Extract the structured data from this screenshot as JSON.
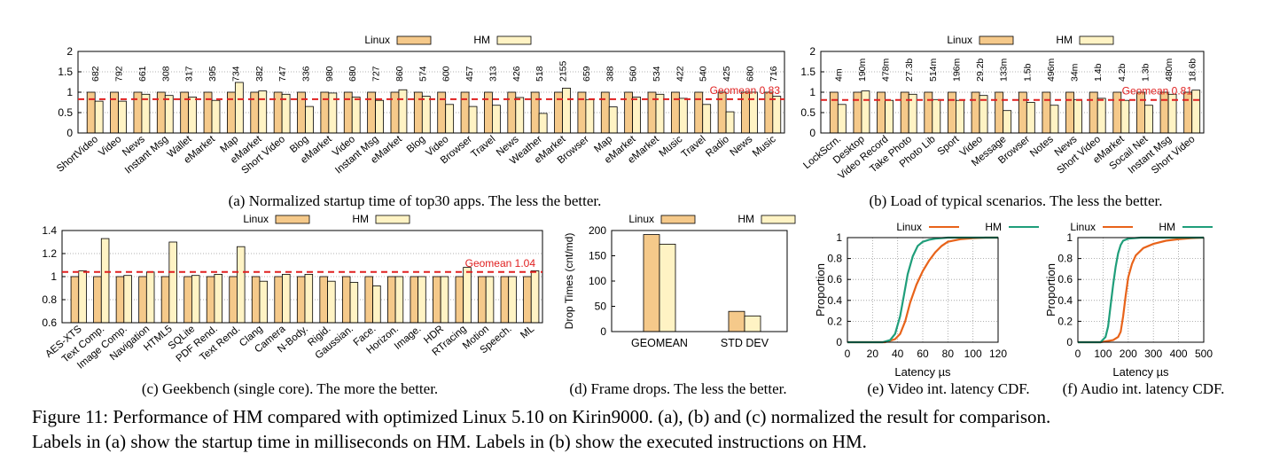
{
  "chart_data": [
    {
      "id": "a",
      "type": "bar",
      "caption": "(a) Normalized startup time of top30 apps. The less the better.",
      "legend": [
        "Linux",
        "HM"
      ],
      "legend_position": "top",
      "ylim": [
        0,
        2
      ],
      "yticks": [
        "0",
        "0.5",
        "1",
        "1.5",
        "2"
      ],
      "grid": true,
      "categories": [
        "ShortVideo",
        "Video",
        "News",
        "Instant Msg",
        "Wallet",
        "eMarket",
        "Map",
        "eMarket",
        "Short Video",
        "Blog",
        "eMarket",
        "Video",
        "Instant Msg",
        "eMarket",
        "Blog",
        "Video",
        "Browser",
        "Travel",
        "News",
        "Weather",
        "eMarket",
        "Browser",
        "Map",
        "eMarket",
        "eMarket",
        "Music",
        "Travel",
        "Radio",
        "News",
        "Music"
      ],
      "top_labels": [
        "682",
        "792",
        "661",
        "308",
        "317",
        "395",
        "734",
        "382",
        "747",
        "336",
        "980",
        "680",
        "727",
        "860",
        "574",
        "600",
        "457",
        "313",
        "426",
        "518",
        "2155",
        "659",
        "388",
        "560",
        "534",
        "422",
        "540",
        "425",
        "680",
        "716"
      ],
      "series": [
        {
          "name": "Linux",
          "values": [
            1,
            1,
            1,
            1,
            1,
            1,
            1,
            1,
            1,
            1,
            1,
            1,
            1,
            1,
            1,
            1,
            1,
            1,
            1,
            1,
            1,
            1,
            1,
            1,
            1,
            1,
            1,
            1,
            1,
            1
          ]
        },
        {
          "name": "HM",
          "values": [
            0.78,
            0.78,
            0.95,
            0.92,
            0.88,
            0.8,
            1.24,
            1.03,
            0.95,
            0.65,
            0.98,
            0.88,
            0.8,
            1.06,
            0.9,
            0.7,
            0.65,
            0.68,
            0.87,
            0.48,
            1.1,
            0.82,
            0.64,
            0.88,
            0.95,
            0.85,
            0.7,
            0.52,
            1.0,
            0.9
          ]
        }
      ],
      "reference_line": {
        "label": "Geomean 0.83",
        "value": 0.83,
        "color": "#e02020"
      }
    },
    {
      "id": "b",
      "type": "bar",
      "caption": "(b) Load of typical scenarios. The less the better.",
      "legend": [
        "Linux",
        "HM"
      ],
      "legend_position": "top",
      "ylim": [
        0,
        2
      ],
      "yticks": [
        "0",
        "0.5",
        "1",
        "1.5",
        "2"
      ],
      "grid": true,
      "categories": [
        "LockScrn.",
        "Desktop",
        "Video Record",
        "Take Photo",
        "Photo Lib",
        "Sport",
        "Video",
        "Message",
        "Browser",
        "Notes",
        "News",
        "Short Video",
        "eMarket",
        "Socail Net",
        "Instant Msg",
        "Short Video"
      ],
      "top_labels": [
        "4m",
        "190m",
        "478m",
        "27.3b",
        "514m",
        "196m",
        "29.2b",
        "133m",
        "1.5b",
        "496m",
        "34m",
        "1.4b",
        "4.2b",
        "1.3b",
        "480m",
        "18.6b"
      ],
      "series": [
        {
          "name": "Linux",
          "values": [
            1,
            1,
            1,
            1,
            1,
            1,
            1,
            1,
            1,
            1,
            1,
            1,
            1,
            1,
            1,
            1
          ]
        },
        {
          "name": "HM",
          "values": [
            0.7,
            1.03,
            0.8,
            0.95,
            0.82,
            0.8,
            0.92,
            0.55,
            0.75,
            0.68,
            0.82,
            0.85,
            0.8,
            0.68,
            0.95,
            1.05
          ]
        }
      ],
      "reference_line": {
        "label": "Geomean 0.81",
        "value": 0.81,
        "color": "#e02020"
      }
    },
    {
      "id": "c",
      "type": "bar",
      "caption": "(c) Geekbench (single core). The more the better.",
      "legend": [
        "Linux",
        "HM"
      ],
      "legend_position": "top",
      "ylim": [
        0.6,
        1.4
      ],
      "yticks": [
        "0.6",
        "0.8",
        "1",
        "1.2",
        "1.4"
      ],
      "grid": true,
      "categories": [
        "AES-XTS",
        "Text Comp.",
        "Image Comp.",
        "Navigation",
        "HTML5",
        "SQLite",
        "PDF Rend.",
        "Text Rend.",
        "Clang",
        "Camera",
        "N-Body.",
        "Rigid.",
        "Gaussian.",
        "Face.",
        "Horizon.",
        "Image.",
        "HDR",
        "RTracing",
        "Motion",
        "Speech.",
        "ML"
      ],
      "series": [
        {
          "name": "Linux",
          "values": [
            1,
            1,
            1,
            1,
            1,
            1,
            1,
            1,
            1,
            1,
            1,
            1,
            1,
            1,
            1,
            1,
            1,
            1,
            1,
            1,
            1
          ]
        },
        {
          "name": "HM",
          "values": [
            1.05,
            1.33,
            1.01,
            1.04,
            1.3,
            1.01,
            1.02,
            1.26,
            0.96,
            1.02,
            1.02,
            0.96,
            0.95,
            0.92,
            1.0,
            1.0,
            1.0,
            1.08,
            1.0,
            1.0,
            1.05
          ]
        }
      ],
      "reference_line": {
        "label": "Geomean 1.04",
        "value": 1.04,
        "color": "#e02020"
      }
    },
    {
      "id": "d",
      "type": "bar",
      "caption": "(d) Frame drops. The less the better.",
      "legend": [
        "Linux",
        "HM"
      ],
      "legend_position": "top",
      "ylabel": "Drop Times (cnt/md)",
      "ylim": [
        0,
        200
      ],
      "yticks": [
        "0",
        "50",
        "100",
        "150",
        "200"
      ],
      "categories": [
        "GEOMEAN",
        "STD DEV"
      ],
      "series": [
        {
          "name": "Linux",
          "values": [
            192,
            40
          ]
        },
        {
          "name": "HM",
          "values": [
            173,
            31
          ]
        }
      ]
    },
    {
      "id": "e",
      "type": "line",
      "caption": "(e) Video int. latency CDF.",
      "legend": [
        "Linux",
        "HM"
      ],
      "legend_position": "top",
      "xlabel": "Latency µs",
      "ylabel": "Proportion",
      "xlim": [
        0,
        120
      ],
      "ylim": [
        0,
        1
      ],
      "xticks": [
        "0",
        "20",
        "40",
        "60",
        "80",
        "100",
        "120"
      ],
      "yticks": [
        "0",
        "0.2",
        "0.4",
        "0.6",
        "0.8",
        "1"
      ],
      "grid": true,
      "series": [
        {
          "name": "Linux",
          "color": "#e8631a",
          "x": [
            0,
            30,
            38,
            42,
            46,
            50,
            55,
            60,
            65,
            70,
            75,
            80,
            90,
            100,
            110,
            120
          ],
          "y": [
            0,
            0,
            0.03,
            0.08,
            0.2,
            0.38,
            0.55,
            0.68,
            0.78,
            0.86,
            0.92,
            0.96,
            0.985,
            0.995,
            1,
            1
          ]
        },
        {
          "name": "HM",
          "color": "#1f9e7a",
          "x": [
            0,
            28,
            34,
            38,
            42,
            45,
            48,
            52,
            56,
            60,
            65,
            70,
            80,
            90,
            120
          ],
          "y": [
            0,
            0,
            0.02,
            0.08,
            0.25,
            0.45,
            0.65,
            0.82,
            0.92,
            0.96,
            0.98,
            0.99,
            1,
            1,
            1
          ]
        }
      ]
    },
    {
      "id": "f",
      "type": "line",
      "caption": "(f) Audio int. latency CDF.",
      "legend": [
        "Linux",
        "HM"
      ],
      "legend_position": "top",
      "xlabel": "Latency µs",
      "ylabel": "Proportion",
      "xlim": [
        0,
        500
      ],
      "ylim": [
        0,
        1
      ],
      "xticks": [
        "0",
        "100",
        "200",
        "300",
        "400",
        "500"
      ],
      "yticks": [
        "0",
        "0.2",
        "0.4",
        "0.6",
        "0.8",
        "1"
      ],
      "grid": true,
      "series": [
        {
          "name": "Linux",
          "color": "#e8631a",
          "x": [
            0,
            90,
            140,
            160,
            170,
            180,
            190,
            200,
            215,
            230,
            260,
            300,
            350,
            400,
            450,
            500
          ],
          "y": [
            0,
            0,
            0.02,
            0.05,
            0.1,
            0.25,
            0.45,
            0.62,
            0.75,
            0.83,
            0.9,
            0.94,
            0.97,
            0.985,
            0.995,
            1
          ]
        },
        {
          "name": "HM",
          "color": "#1f9e7a",
          "x": [
            0,
            90,
            110,
            120,
            130,
            140,
            150,
            160,
            170,
            180,
            200,
            250,
            500
          ],
          "y": [
            0,
            0,
            0.05,
            0.15,
            0.35,
            0.55,
            0.72,
            0.85,
            0.93,
            0.97,
            0.99,
            1,
            1
          ]
        }
      ]
    }
  ],
  "figure_caption": {
    "line1": "Figure 11: Performance of HM compared with optimized Linux 5.10 on Kirin9000. (a), (b) and (c) normalized the result for comparison.",
    "line2": "Labels in (a) show the startup time in milliseconds on HM. Labels in (b) show the executed instructions on HM."
  },
  "colors": {
    "linux_bar": "#f5c98a",
    "hm_bar": "#fff3c4",
    "geomean": "#e02020"
  }
}
